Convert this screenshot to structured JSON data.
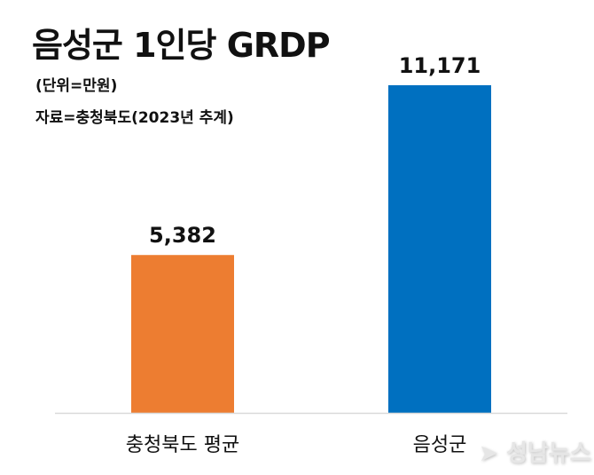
{
  "chart_data": {
    "type": "bar",
    "title": "음성군 1인당 GRDP",
    "subtitle": "(단위=만원)",
    "source": "자료=충청북도(2023년 추계)",
    "categories": [
      "충청북도 평균",
      "음성군"
    ],
    "values": [
      5382,
      11171
    ],
    "value_labels": [
      "5,382",
      "11,171"
    ],
    "colors": [
      "#ED7D31",
      "#0070C0"
    ],
    "ylim": [
      0,
      11171
    ],
    "grid": false
  },
  "watermark": "성남뉴스"
}
